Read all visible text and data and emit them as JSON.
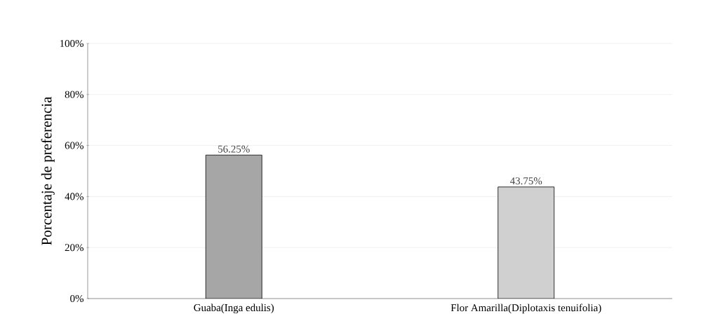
{
  "chart_data": {
    "type": "bar",
    "ylabel": "Porcentaje de preferencia",
    "categories": [
      "Guaba(Inga edulis)",
      "Flor Amarilla(Diplotaxis tenuifolia)"
    ],
    "values": [
      56.25,
      43.75
    ],
    "colors": [
      "#a6a6a6",
      "#d0d0d0"
    ],
    "value_labels": [
      "56.25%",
      "43.75%"
    ],
    "ylim": [
      0,
      100
    ],
    "yticks": [
      {
        "value": 0,
        "label": "0%"
      },
      {
        "value": 20,
        "label": "20%"
      },
      {
        "value": 40,
        "label": "40%"
      },
      {
        "value": 60,
        "label": "60%"
      },
      {
        "value": 80,
        "label": "80%"
      },
      {
        "value": 100,
        "label": "100%"
      }
    ],
    "grid": "y"
  }
}
